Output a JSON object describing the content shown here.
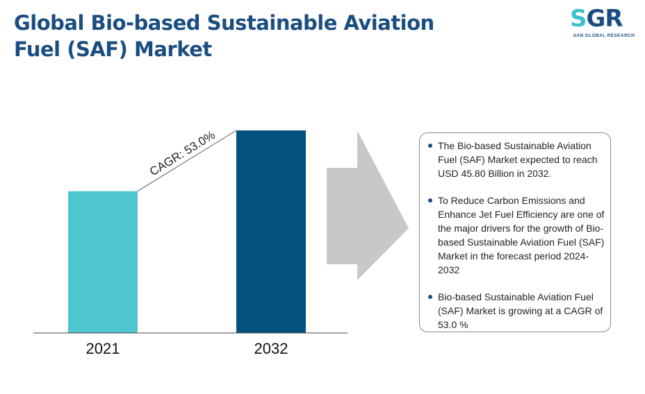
{
  "title": {
    "line1": "Global Bio-based Sustainable Aviation",
    "line2": "Fuel (SAF) Market"
  },
  "logo": {
    "mark_s": "S",
    "mark_gr": "GR",
    "subtitle": "SAN GLOBAL RESEARCH",
    "colors": {
      "s": "#3cc0cf",
      "gr": "#1a4e80"
    }
  },
  "chart_data": {
    "type": "bar",
    "categories": [
      "2021",
      "2032"
    ],
    "values": [
      0.7,
      1.0
    ],
    "colors": [
      "#4ec5d0",
      "#04517f"
    ],
    "annotation": "CAGR: 53.0%",
    "ylim": [
      0,
      1.0
    ],
    "grid": false,
    "legend": "none"
  },
  "info": {
    "items": [
      "The Bio-based Sustainable Aviation Fuel (SAF) Market expected to reach USD 45.80 Billion in 2032.",
      "To Reduce Carbon Emissions and Enhance Jet Fuel Efficiency are one of the major drivers for the growth of Bio-based Sustainable Aviation Fuel (SAF) Market in the forecast period 2024-2032",
      "Bio-based Sustainable Aviation Fuel (SAF) Market is growing at a CAGR of 53.0 %"
    ]
  },
  "colors": {
    "title": "#1a4e80",
    "arrow": "#c8c8c8",
    "bullet": "#1a4e80"
  }
}
